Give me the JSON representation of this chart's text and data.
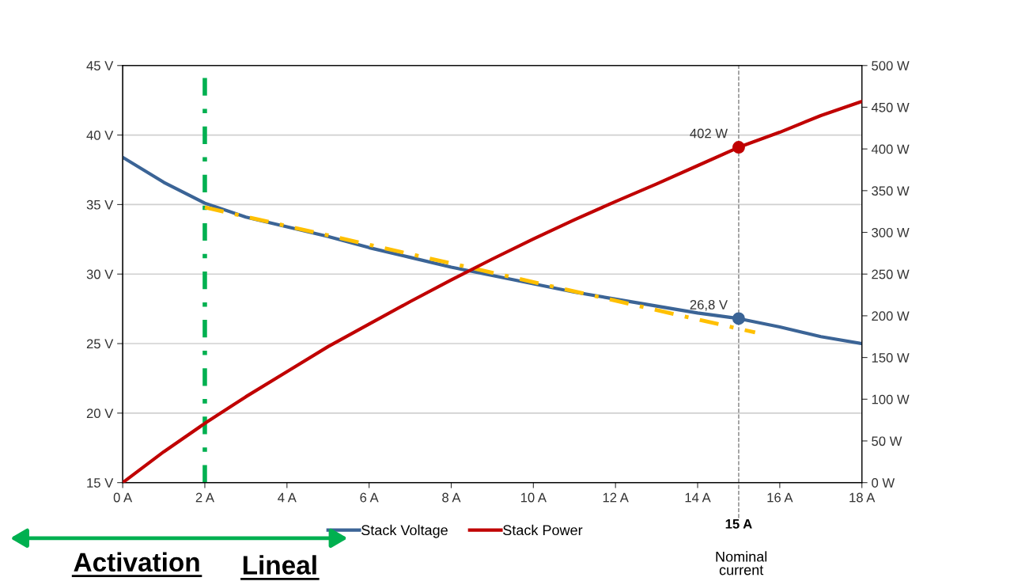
{
  "chart_data": {
    "type": "line",
    "x": [
      0,
      1,
      2,
      3,
      4,
      5,
      6,
      7,
      8,
      9,
      10,
      11,
      12,
      13,
      14,
      15,
      16,
      17,
      18
    ],
    "series": [
      {
        "name": "Stack Voltage",
        "color": "#3b6496",
        "axis": "y",
        "values": [
          38.4,
          36.6,
          35.1,
          34.1,
          33.4,
          32.7,
          31.9,
          31.2,
          30.5,
          29.9,
          29.3,
          28.7,
          28.2,
          27.7,
          27.2,
          26.8,
          26.2,
          25.5,
          25.0
        ]
      },
      {
        "name": "Stack Power",
        "color": "#c00000",
        "axis": "y2",
        "values": [
          0,
          37,
          71,
          103,
          133,
          163,
          190,
          217,
          243,
          268,
          292,
          315,
          337,
          358,
          380,
          402,
          420,
          440,
          457
        ]
      },
      {
        "type": "line",
        "color": "#ffc000",
        "axis": "y",
        "line_style": "dashdot",
        "x": [
          2,
          15.4
        ],
        "values": [
          34.8,
          25.8
        ]
      },
      {
        "type": "scatter",
        "color": "#3b6496",
        "axis": "y",
        "marker": "circle",
        "x": [
          15
        ],
        "values": [
          26.8
        ],
        "value_labels": [
          "26,8 V"
        ]
      },
      {
        "type": "scatter",
        "color": "#c00000",
        "axis": "y2",
        "marker": "circle",
        "x": [
          15
        ],
        "values": [
          402
        ],
        "value_labels": [
          "402 W"
        ]
      }
    ],
    "xlim": [
      0,
      18
    ],
    "xticks": [
      {
        "value": 0,
        "label": "0 A"
      },
      {
        "value": 2,
        "label": "2 A"
      },
      {
        "value": 4,
        "label": "4 A"
      },
      {
        "value": 6,
        "label": "6 A"
      },
      {
        "value": 8,
        "label": "8 A"
      },
      {
        "value": 10,
        "label": "10 A"
      },
      {
        "value": 12,
        "label": "12 A"
      },
      {
        "value": 14,
        "label": "14 A"
      },
      {
        "value": 16,
        "label": "16 A"
      },
      {
        "value": 18,
        "label": "18 A"
      }
    ],
    "ylim": [
      15,
      45
    ],
    "yticks": [
      {
        "value": 15,
        "label": "15 V"
      },
      {
        "value": 20,
        "label": "20 V"
      },
      {
        "value": 25,
        "label": "25 V"
      },
      {
        "value": 30,
        "label": "30 V"
      },
      {
        "value": 35,
        "label": "35 V"
      },
      {
        "value": 40,
        "label": "40 V"
      },
      {
        "value": 45,
        "label": "45 V"
      }
    ],
    "y2lim": [
      0,
      500
    ],
    "y2ticks": [
      {
        "value": 0,
        "label": "0 W"
      },
      {
        "value": 50,
        "label": "50 W"
      },
      {
        "value": 100,
        "label": "100 W"
      },
      {
        "value": 150,
        "label": "150 W"
      },
      {
        "value": 200,
        "label": "200 W"
      },
      {
        "value": 250,
        "label": "250 W"
      },
      {
        "value": 300,
        "label": "300 W"
      },
      {
        "value": 350,
        "label": "350 W"
      },
      {
        "value": 400,
        "label": "400 W"
      },
      {
        "value": 450,
        "label": "450 W"
      },
      {
        "value": 500,
        "label": "500 W"
      }
    ],
    "ref_lines": [
      {
        "axis": "x",
        "value": 2,
        "color": "#00b050",
        "line_style": "dashdot"
      },
      {
        "axis": "x",
        "value": 15,
        "label": "15 A",
        "color": "#808080",
        "line_style": "dashed"
      }
    ],
    "annotations": [
      "Activation",
      "Lineal",
      "Nominal\ncurrent"
    ],
    "grid": "y",
    "legend": "bottom",
    "line_style": "solid",
    "marker": "none"
  }
}
